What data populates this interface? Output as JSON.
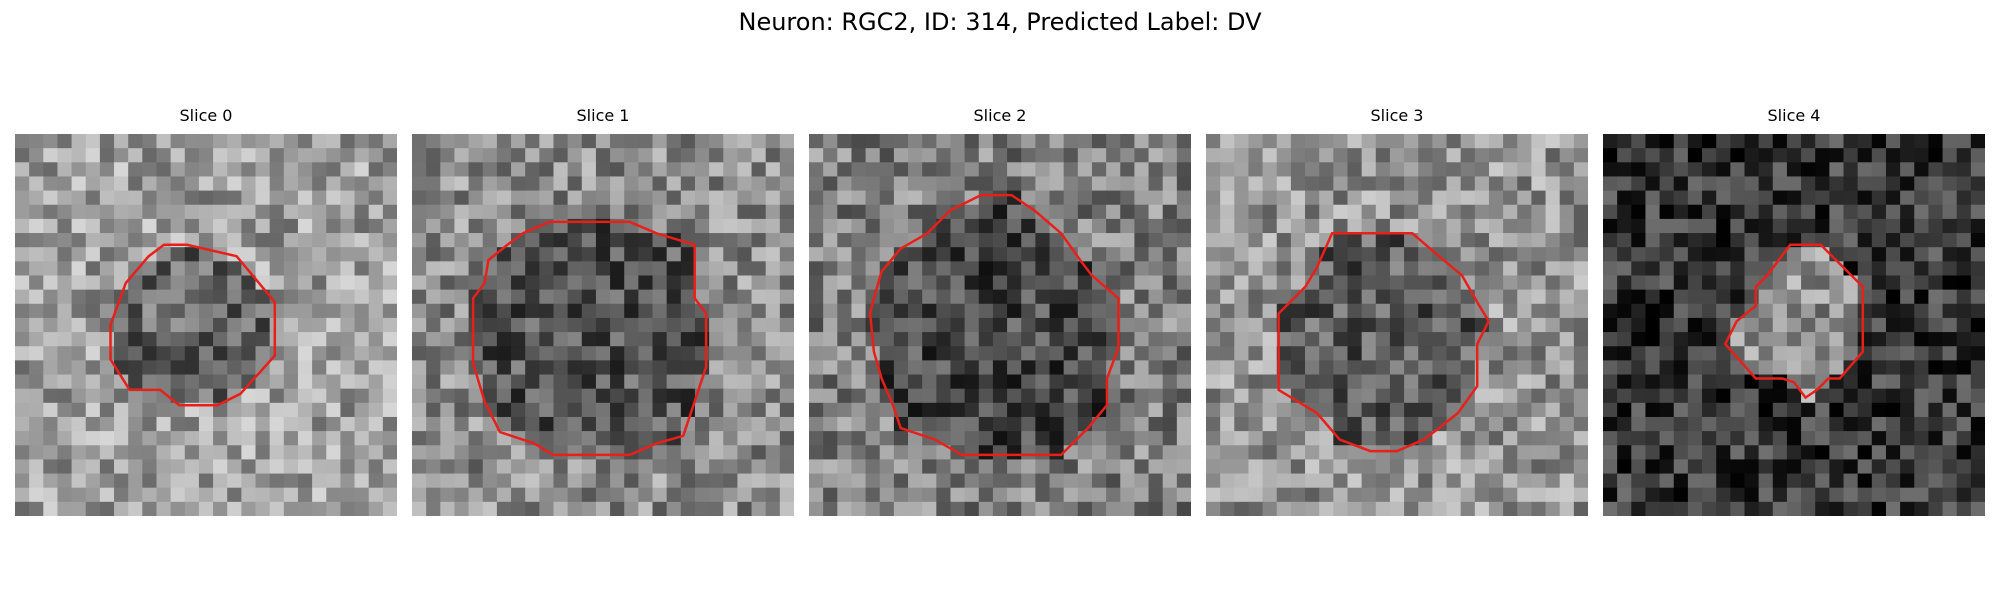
{
  "figure": {
    "title": "Neuron: RGC2, ID: 314, Predicted Label: DV"
  },
  "panels": [
    {
      "title": "Slice 0",
      "mean_intensity": 0.62,
      "seed": 11,
      "contour": [
        [
          0.39,
          0.29
        ],
        [
          0.45,
          0.29
        ],
        [
          0.58,
          0.32
        ],
        [
          0.68,
          0.44
        ],
        [
          0.68,
          0.58
        ],
        [
          0.59,
          0.68
        ],
        [
          0.53,
          0.71
        ],
        [
          0.43,
          0.71
        ],
        [
          0.38,
          0.67
        ],
        [
          0.3,
          0.67
        ],
        [
          0.25,
          0.59
        ],
        [
          0.25,
          0.5
        ],
        [
          0.29,
          0.39
        ],
        [
          0.35,
          0.32
        ]
      ]
    },
    {
      "title": "Slice 1",
      "mean_intensity": 0.55,
      "seed": 23,
      "contour": [
        [
          0.36,
          0.23
        ],
        [
          0.57,
          0.23
        ],
        [
          0.64,
          0.26
        ],
        [
          0.74,
          0.29
        ],
        [
          0.74,
          0.43
        ],
        [
          0.77,
          0.47
        ],
        [
          0.77,
          0.61
        ],
        [
          0.74,
          0.7
        ],
        [
          0.71,
          0.79
        ],
        [
          0.64,
          0.81
        ],
        [
          0.57,
          0.84
        ],
        [
          0.37,
          0.84
        ],
        [
          0.32,
          0.81
        ],
        [
          0.23,
          0.78
        ],
        [
          0.19,
          0.7
        ],
        [
          0.16,
          0.6
        ],
        [
          0.16,
          0.43
        ],
        [
          0.19,
          0.39
        ],
        [
          0.2,
          0.33
        ],
        [
          0.25,
          0.29
        ],
        [
          0.29,
          0.26
        ]
      ]
    },
    {
      "title": "Slice 2",
      "mean_intensity": 0.5,
      "seed": 37,
      "contour": [
        [
          0.45,
          0.16
        ],
        [
          0.53,
          0.16
        ],
        [
          0.59,
          0.2
        ],
        [
          0.66,
          0.26
        ],
        [
          0.71,
          0.33
        ],
        [
          0.74,
          0.37
        ],
        [
          0.81,
          0.43
        ],
        [
          0.81,
          0.56
        ],
        [
          0.78,
          0.64
        ],
        [
          0.78,
          0.71
        ],
        [
          0.73,
          0.77
        ],
        [
          0.66,
          0.84
        ],
        [
          0.61,
          0.84
        ],
        [
          0.4,
          0.84
        ],
        [
          0.33,
          0.8
        ],
        [
          0.24,
          0.77
        ],
        [
          0.22,
          0.71
        ],
        [
          0.19,
          0.64
        ],
        [
          0.17,
          0.57
        ],
        [
          0.16,
          0.47
        ],
        [
          0.17,
          0.43
        ],
        [
          0.19,
          0.36
        ],
        [
          0.24,
          0.3
        ],
        [
          0.31,
          0.26
        ],
        [
          0.37,
          0.2
        ]
      ]
    },
    {
      "title": "Slice 3",
      "mean_intensity": 0.58,
      "seed": 51,
      "contour": [
        [
          0.33,
          0.26
        ],
        [
          0.54,
          0.26
        ],
        [
          0.61,
          0.32
        ],
        [
          0.67,
          0.37
        ],
        [
          0.71,
          0.44
        ],
        [
          0.74,
          0.49
        ],
        [
          0.71,
          0.55
        ],
        [
          0.71,
          0.66
        ],
        [
          0.66,
          0.73
        ],
        [
          0.61,
          0.77
        ],
        [
          0.57,
          0.8
        ],
        [
          0.5,
          0.83
        ],
        [
          0.43,
          0.83
        ],
        [
          0.35,
          0.8
        ],
        [
          0.29,
          0.73
        ],
        [
          0.19,
          0.67
        ],
        [
          0.19,
          0.47
        ],
        [
          0.23,
          0.43
        ],
        [
          0.26,
          0.4
        ],
        [
          0.29,
          0.35
        ]
      ]
    },
    {
      "title": "Slice 4",
      "mean_intensity": 0.22,
      "seed": 67,
      "contour": [
        [
          0.49,
          0.29
        ],
        [
          0.57,
          0.29
        ],
        [
          0.68,
          0.4
        ],
        [
          0.68,
          0.57
        ],
        [
          0.62,
          0.64
        ],
        [
          0.59,
          0.64
        ],
        [
          0.56,
          0.67
        ],
        [
          0.53,
          0.69
        ],
        [
          0.5,
          0.65
        ],
        [
          0.47,
          0.64
        ],
        [
          0.4,
          0.64
        ],
        [
          0.32,
          0.55
        ],
        [
          0.35,
          0.49
        ],
        [
          0.4,
          0.45
        ],
        [
          0.4,
          0.4
        ],
        [
          0.43,
          0.37
        ]
      ]
    }
  ],
  "colors": {
    "contour": "#e8201a",
    "background": "#ffffff"
  }
}
